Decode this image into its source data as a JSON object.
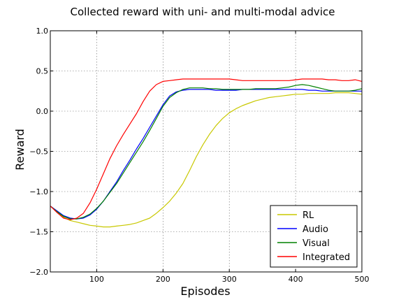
{
  "chart_data": {
    "type": "line",
    "title": "Collected reward with uni- and multi-modal advice",
    "xlabel": "Episodes",
    "ylabel": "Reward",
    "xlim": [
      30,
      500
    ],
    "ylim": [
      -2.0,
      1.0
    ],
    "xticks": [
      100,
      200,
      300,
      400,
      500
    ],
    "yticks": [
      -2.0,
      -1.5,
      -1.0,
      -0.5,
      0.0,
      0.5,
      1.0
    ],
    "xtick_labels": [
      "100",
      "200",
      "300",
      "400",
      "500"
    ],
    "ytick_labels": [
      "−2.0",
      "−1.5",
      "−1.0",
      "−0.5",
      "0.0",
      "0.5",
      "1.0"
    ],
    "grid": true,
    "legend_position": "lower-right",
    "series": [
      {
        "name": "RL",
        "color": "#c8c800",
        "points": [
          [
            30,
            -1.18
          ],
          [
            40,
            -1.25
          ],
          [
            50,
            -1.32
          ],
          [
            60,
            -1.36
          ],
          [
            70,
            -1.38
          ],
          [
            80,
            -1.4
          ],
          [
            90,
            -1.42
          ],
          [
            100,
            -1.43
          ],
          [
            110,
            -1.44
          ],
          [
            120,
            -1.44
          ],
          [
            130,
            -1.43
          ],
          [
            140,
            -1.42
          ],
          [
            150,
            -1.41
          ],
          [
            160,
            -1.39
          ],
          [
            170,
            -1.36
          ],
          [
            180,
            -1.33
          ],
          [
            190,
            -1.27
          ],
          [
            200,
            -1.2
          ],
          [
            210,
            -1.12
          ],
          [
            220,
            -1.02
          ],
          [
            230,
            -0.9
          ],
          [
            240,
            -0.74
          ],
          [
            250,
            -0.57
          ],
          [
            260,
            -0.42
          ],
          [
            270,
            -0.29
          ],
          [
            280,
            -0.18
          ],
          [
            290,
            -0.09
          ],
          [
            300,
            -0.02
          ],
          [
            310,
            0.03
          ],
          [
            320,
            0.07
          ],
          [
            330,
            0.1
          ],
          [
            340,
            0.13
          ],
          [
            350,
            0.15
          ],
          [
            360,
            0.17
          ],
          [
            370,
            0.18
          ],
          [
            380,
            0.19
          ],
          [
            390,
            0.2
          ],
          [
            400,
            0.21
          ],
          [
            410,
            0.21
          ],
          [
            420,
            0.22
          ],
          [
            430,
            0.22
          ],
          [
            440,
            0.22
          ],
          [
            450,
            0.22
          ],
          [
            460,
            0.23
          ],
          [
            470,
            0.23
          ],
          [
            480,
            0.23
          ],
          [
            490,
            0.22
          ],
          [
            500,
            0.21
          ]
        ]
      },
      {
        "name": "Audio",
        "color": "#0000ff",
        "points": [
          [
            30,
            -1.18
          ],
          [
            40,
            -1.24
          ],
          [
            50,
            -1.3
          ],
          [
            60,
            -1.33
          ],
          [
            70,
            -1.34
          ],
          [
            80,
            -1.33
          ],
          [
            90,
            -1.29
          ],
          [
            100,
            -1.22
          ],
          [
            110,
            -1.12
          ],
          [
            120,
            -1.0
          ],
          [
            130,
            -0.88
          ],
          [
            140,
            -0.74
          ],
          [
            150,
            -0.61
          ],
          [
            160,
            -0.47
          ],
          [
            170,
            -0.34
          ],
          [
            180,
            -0.2
          ],
          [
            190,
            -0.06
          ],
          [
            200,
            0.08
          ],
          [
            210,
            0.19
          ],
          [
            220,
            0.24
          ],
          [
            230,
            0.26
          ],
          [
            240,
            0.27
          ],
          [
            250,
            0.27
          ],
          [
            260,
            0.27
          ],
          [
            270,
            0.27
          ],
          [
            280,
            0.26
          ],
          [
            290,
            0.26
          ],
          [
            300,
            0.26
          ],
          [
            310,
            0.26
          ],
          [
            320,
            0.27
          ],
          [
            330,
            0.27
          ],
          [
            340,
            0.27
          ],
          [
            350,
            0.27
          ],
          [
            360,
            0.27
          ],
          [
            370,
            0.27
          ],
          [
            380,
            0.27
          ],
          [
            390,
            0.27
          ],
          [
            400,
            0.27
          ],
          [
            410,
            0.27
          ],
          [
            420,
            0.26
          ],
          [
            430,
            0.26
          ],
          [
            440,
            0.25
          ],
          [
            450,
            0.25
          ],
          [
            460,
            0.25
          ],
          [
            470,
            0.25
          ],
          [
            480,
            0.25
          ],
          [
            490,
            0.25
          ],
          [
            500,
            0.25
          ]
        ]
      },
      {
        "name": "Visual",
        "color": "#008000",
        "points": [
          [
            30,
            -1.18
          ],
          [
            40,
            -1.25
          ],
          [
            50,
            -1.31
          ],
          [
            60,
            -1.34
          ],
          [
            70,
            -1.34
          ],
          [
            80,
            -1.32
          ],
          [
            90,
            -1.28
          ],
          [
            100,
            -1.21
          ],
          [
            110,
            -1.12
          ],
          [
            120,
            -1.01
          ],
          [
            130,
            -0.9
          ],
          [
            140,
            -0.77
          ],
          [
            150,
            -0.64
          ],
          [
            160,
            -0.51
          ],
          [
            170,
            -0.38
          ],
          [
            180,
            -0.24
          ],
          [
            190,
            -0.09
          ],
          [
            200,
            0.06
          ],
          [
            210,
            0.17
          ],
          [
            220,
            0.23
          ],
          [
            230,
            0.27
          ],
          [
            240,
            0.29
          ],
          [
            250,
            0.29
          ],
          [
            260,
            0.29
          ],
          [
            270,
            0.28
          ],
          [
            280,
            0.28
          ],
          [
            290,
            0.27
          ],
          [
            300,
            0.27
          ],
          [
            310,
            0.27
          ],
          [
            320,
            0.27
          ],
          [
            330,
            0.27
          ],
          [
            340,
            0.28
          ],
          [
            350,
            0.28
          ],
          [
            360,
            0.28
          ],
          [
            370,
            0.28
          ],
          [
            380,
            0.29
          ],
          [
            390,
            0.3
          ],
          [
            400,
            0.32
          ],
          [
            410,
            0.33
          ],
          [
            420,
            0.32
          ],
          [
            430,
            0.3
          ],
          [
            440,
            0.28
          ],
          [
            450,
            0.26
          ],
          [
            460,
            0.25
          ],
          [
            470,
            0.25
          ],
          [
            480,
            0.25
          ],
          [
            490,
            0.26
          ],
          [
            500,
            0.28
          ]
        ]
      },
      {
        "name": "Integrated",
        "color": "#ff0000",
        "points": [
          [
            30,
            -1.18
          ],
          [
            40,
            -1.26
          ],
          [
            50,
            -1.33
          ],
          [
            60,
            -1.35
          ],
          [
            70,
            -1.33
          ],
          [
            80,
            -1.27
          ],
          [
            90,
            -1.14
          ],
          [
            100,
            -0.97
          ],
          [
            110,
            -0.78
          ],
          [
            120,
            -0.59
          ],
          [
            130,
            -0.43
          ],
          [
            140,
            -0.29
          ],
          [
            150,
            -0.16
          ],
          [
            160,
            -0.03
          ],
          [
            170,
            0.12
          ],
          [
            180,
            0.25
          ],
          [
            190,
            0.33
          ],
          [
            200,
            0.37
          ],
          [
            210,
            0.38
          ],
          [
            220,
            0.39
          ],
          [
            230,
            0.4
          ],
          [
            240,
            0.4
          ],
          [
            250,
            0.4
          ],
          [
            260,
            0.4
          ],
          [
            270,
            0.4
          ],
          [
            280,
            0.4
          ],
          [
            290,
            0.4
          ],
          [
            300,
            0.4
          ],
          [
            310,
            0.39
          ],
          [
            320,
            0.38
          ],
          [
            330,
            0.38
          ],
          [
            340,
            0.38
          ],
          [
            350,
            0.38
          ],
          [
            360,
            0.38
          ],
          [
            370,
            0.38
          ],
          [
            380,
            0.38
          ],
          [
            390,
            0.38
          ],
          [
            400,
            0.39
          ],
          [
            410,
            0.4
          ],
          [
            420,
            0.4
          ],
          [
            430,
            0.4
          ],
          [
            440,
            0.4
          ],
          [
            450,
            0.39
          ],
          [
            460,
            0.39
          ],
          [
            470,
            0.38
          ],
          [
            480,
            0.38
          ],
          [
            490,
            0.39
          ],
          [
            500,
            0.37
          ]
        ]
      }
    ]
  }
}
